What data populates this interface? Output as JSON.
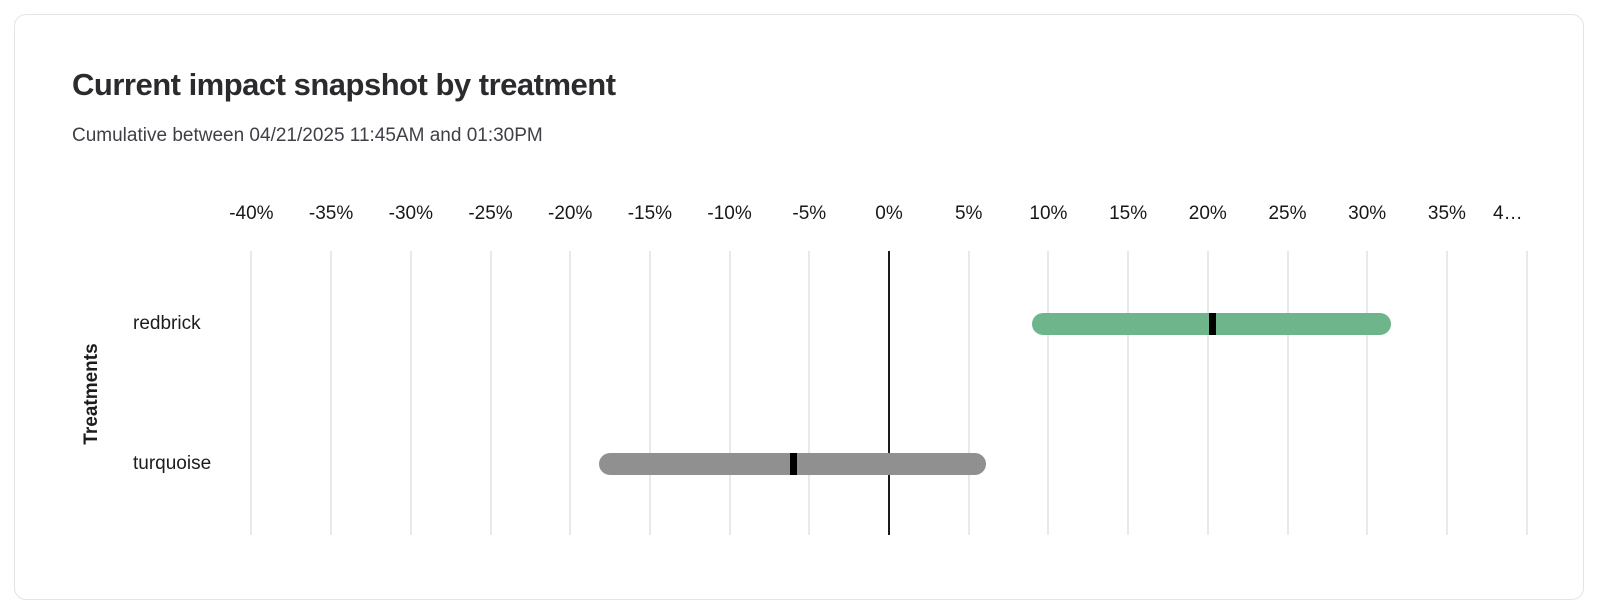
{
  "chart_data": {
    "type": "bar",
    "subtype": "horizontal_range_bar_with_point_marker",
    "title": "Current impact snapshot by treatment",
    "subtitle": "Cumulative between 04/21/2025 11:45AM and 01:30PM",
    "ylabel": "Treatments",
    "xlabel": "",
    "categories": [
      "redbrick",
      "turquoise"
    ],
    "series": [
      {
        "name": "redbrick",
        "low": 9.0,
        "point": 20.3,
        "high": 31.5,
        "color": "#6fb58b"
      },
      {
        "name": "turquoise",
        "low": -18.2,
        "point": -6.0,
        "high": 6.1,
        "color": "#909090"
      }
    ],
    "x_axis": {
      "unit": "%",
      "min": -41,
      "max": 41,
      "tick_values": [
        -40,
        -35,
        -30,
        -25,
        -20,
        -15,
        -10,
        -5,
        0,
        5,
        10,
        15,
        20,
        25,
        30,
        35,
        40
      ],
      "tick_labels": [
        "-40%",
        "-35%",
        "-30%",
        "-25%",
        "-20%",
        "-15%",
        "-10%",
        "-5%",
        "0%",
        "5%",
        "10%",
        "15%",
        "20%",
        "25%",
        "30%",
        "35%",
        "4…"
      ],
      "grid": true,
      "zero_line": true
    },
    "legend": "none",
    "colors": {
      "grid": "#e9e9ea",
      "zero_line": "#1a1a1a",
      "marker": "#000000",
      "title_text": "#2b2b2e",
      "subtitle_text": "#3f3f46",
      "tick_text": "#18181b"
    }
  }
}
